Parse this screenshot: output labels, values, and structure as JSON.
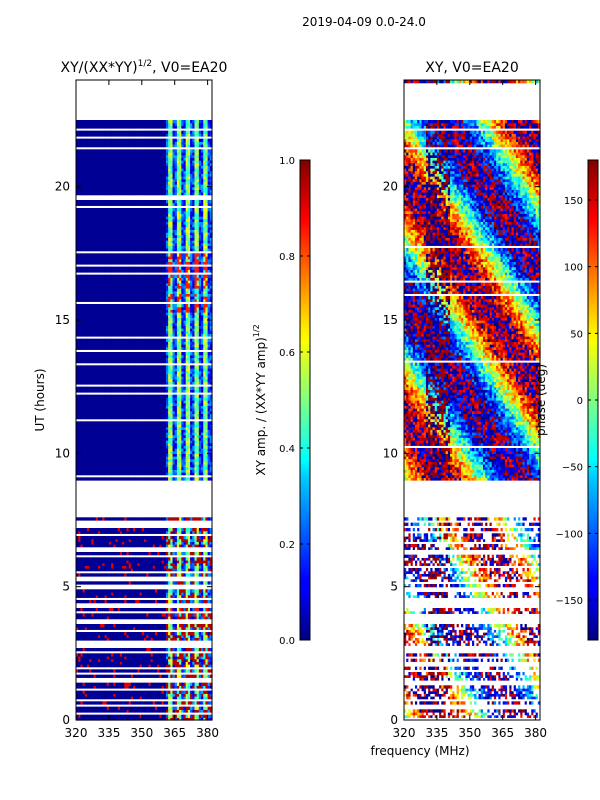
{
  "suptitle": "2019-04-09 0.0-24.0",
  "shared_xlabel": "frequency (MHz)",
  "colors": {
    "missing": "#ffffff",
    "frame": "#000000",
    "jet_stops": [
      "#000080",
      "#0000ff",
      "#00ffff",
      "#ffff00",
      "#ff0000",
      "#800000"
    ]
  },
  "chart_data": [
    {
      "type": "heatmap",
      "title_main": "XY/(XX*YY)",
      "title_sup": "1/2",
      "title_rest": ", V0=EA20",
      "ylabel": "UT (hours)",
      "xlabel": "",
      "xlim": [
        320,
        382
      ],
      "ylim": [
        0,
        24
      ],
      "xticks": [
        "320",
        "335",
        "350",
        "365",
        "380"
      ],
      "xtick_values": [
        320,
        335,
        350,
        365,
        380
      ],
      "yticks": [
        "0",
        "5",
        "10",
        "15",
        "20"
      ],
      "ytick_values": [
        0,
        5,
        10,
        15,
        20
      ],
      "data_coverage_hours": [
        [
          0,
          7.7
        ],
        [
          9.0,
          22.5
        ]
      ],
      "description_values": {
        "low_band_MHz": [
          320,
          360
        ],
        "low_band_value": 0.02,
        "rfi_columns_MHz": [
          362.5,
          366.5,
          370.5,
          374.5,
          378.5
        ],
        "rfi_column_value": 0.45,
        "high_value_patches_hours": [
          [
            16.2,
            17.6
          ],
          [
            15.3,
            16.0
          ],
          [
            3.8,
            4.3
          ]
        ],
        "high_value_patch_value": 0.85
      },
      "colorbar": {
        "label_main": "XY amp. / (XX*YY amp)",
        "label_sup": "1/2",
        "range": [
          0.0,
          1.0
        ],
        "ticks": [
          "0.0",
          "0.2",
          "0.4",
          "0.6",
          "0.8",
          "1.0"
        ],
        "tick_values": [
          0.0,
          0.2,
          0.4,
          0.6,
          0.8,
          1.0
        ]
      }
    },
    {
      "type": "heatmap",
      "title_main": "XY, V0=EA20",
      "ylabel": "",
      "xlabel": "frequency (MHz)",
      "xlim": [
        320,
        382
      ],
      "ylim": [
        0,
        24
      ],
      "xticks": [
        "320",
        "335",
        "350",
        "365",
        "380"
      ],
      "xtick_values": [
        320,
        335,
        350,
        365,
        380
      ],
      "yticks": [
        "0",
        "5",
        "10",
        "15",
        "20"
      ],
      "ytick_values": [
        0,
        5,
        10,
        15,
        20
      ],
      "data_coverage_hours": [
        [
          0,
          7.7
        ],
        [
          9.0,
          22.5
        ],
        [
          23.9,
          24.0
        ]
      ],
      "description_values": {
        "phase_wrap_band_MHz": [
          330,
          340
        ],
        "phase_wrap_value_deg": 170
      },
      "colorbar": {
        "label_main": "phase (deg)",
        "range": [
          -180,
          180
        ],
        "ticks": [
          "−150",
          "−100",
          "−50",
          "0",
          "50",
          "100",
          "150"
        ],
        "tick_values": [
          -150,
          -100,
          -50,
          0,
          50,
          100,
          150
        ]
      }
    }
  ]
}
